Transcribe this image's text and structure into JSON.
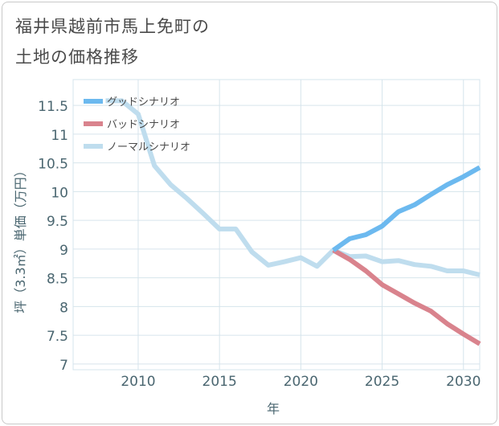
{
  "title": {
    "line1": "福井県越前市馬上免町の",
    "line2": "土地の価格推移"
  },
  "chart_data": {
    "type": "line",
    "xlabel": "年",
    "ylabel": "坪（3.3㎡）単価（万円）",
    "xlim": [
      2006,
      2031
    ],
    "ylim": [
      6.9,
      11.95
    ],
    "x_ticks": [
      2010,
      2015,
      2020,
      2025,
      2030
    ],
    "y_ticks": [
      7,
      7.5,
      8,
      8.5,
      9,
      9.5,
      10,
      10.5,
      11,
      11.5
    ],
    "y_tick_labels": [
      "7",
      "7.5",
      "8",
      "8.5",
      "9",
      "9.5",
      "10",
      "10.5",
      "11",
      "11.5"
    ],
    "grid": true,
    "legend_position": "top-left",
    "series": [
      {
        "name": "グッドシナリオ",
        "color": "#6cb9ef",
        "x": [
          2022,
          2023,
          2024,
          2025,
          2026,
          2027,
          2028,
          2029,
          2030,
          2031
        ],
        "values": [
          8.98,
          9.18,
          9.25,
          9.4,
          9.65,
          9.77,
          9.95,
          10.12,
          10.26,
          10.42
        ]
      },
      {
        "name": "バッドシナリオ",
        "color": "#d9838d",
        "x": [
          2022,
          2023,
          2024,
          2025,
          2026,
          2027,
          2028,
          2029,
          2030,
          2031
        ],
        "values": [
          8.98,
          8.82,
          8.62,
          8.38,
          8.22,
          8.06,
          7.92,
          7.7,
          7.52,
          7.35
        ]
      },
      {
        "name": "ノーマルシナリオ",
        "color": "#bfddee",
        "x": [
          2008,
          2009,
          2010,
          2011,
          2012,
          2013,
          2014,
          2015,
          2016,
          2017,
          2018,
          2019,
          2020,
          2021,
          2022,
          2023,
          2024,
          2025,
          2026,
          2027,
          2028,
          2029,
          2030,
          2031
        ],
        "values": [
          11.58,
          11.58,
          11.35,
          10.45,
          10.12,
          9.88,
          9.62,
          9.35,
          9.35,
          8.95,
          8.72,
          8.78,
          8.85,
          8.7,
          8.98,
          8.87,
          8.88,
          8.78,
          8.8,
          8.73,
          8.7,
          8.62,
          8.62,
          8.55
        ]
      }
    ]
  }
}
